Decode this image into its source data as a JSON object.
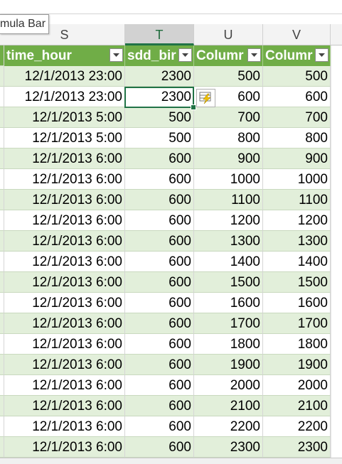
{
  "tooltip": {
    "text": "mula Bar"
  },
  "columns": [
    {
      "letter": "S",
      "selected": false
    },
    {
      "letter": "T",
      "selected": true
    },
    {
      "letter": "U",
      "selected": false
    },
    {
      "letter": "V",
      "selected": false
    }
  ],
  "table": {
    "headers": [
      "time_hour",
      "sdd_bir",
      "Columr",
      "Columr"
    ],
    "rows": [
      [
        "12/1/2013 23:00",
        "2300",
        "500",
        "500"
      ],
      [
        "12/1/2013 23:00",
        "2300",
        "600",
        "600"
      ],
      [
        "12/1/2013 5:00",
        "500",
        "700",
        "700"
      ],
      [
        "12/1/2013 5:00",
        "500",
        "800",
        "800"
      ],
      [
        "12/1/2013 6:00",
        "600",
        "900",
        "900"
      ],
      [
        "12/1/2013 6:00",
        "600",
        "1000",
        "1000"
      ],
      [
        "12/1/2013 6:00",
        "600",
        "1100",
        "1100"
      ],
      [
        "12/1/2013 6:00",
        "600",
        "1200",
        "1200"
      ],
      [
        "12/1/2013 6:00",
        "600",
        "1300",
        "1300"
      ],
      [
        "12/1/2013 6:00",
        "600",
        "1400",
        "1400"
      ],
      [
        "12/1/2013 6:00",
        "600",
        "1500",
        "1500"
      ],
      [
        "12/1/2013 6:00",
        "600",
        "1600",
        "1600"
      ],
      [
        "12/1/2013 6:00",
        "600",
        "1700",
        "1700"
      ],
      [
        "12/1/2013 6:00",
        "600",
        "1800",
        "1800"
      ],
      [
        "12/1/2013 6:00",
        "600",
        "1900",
        "1900"
      ],
      [
        "12/1/2013 6:00",
        "600",
        "2000",
        "2000"
      ],
      [
        "12/1/2013 6:00",
        "600",
        "2100",
        "2100"
      ],
      [
        "12/1/2013 6:00",
        "600",
        "2200",
        "2200"
      ],
      [
        "12/1/2013 6:00",
        "600",
        "2300",
        "2300"
      ]
    ]
  },
  "colors": {
    "table_header": "#70ad47",
    "band_row": "#e2efda",
    "selection": "#217346"
  },
  "icons": {
    "filter": "filter-dropdown-icon",
    "quick_analysis": "quick-analysis-icon"
  }
}
